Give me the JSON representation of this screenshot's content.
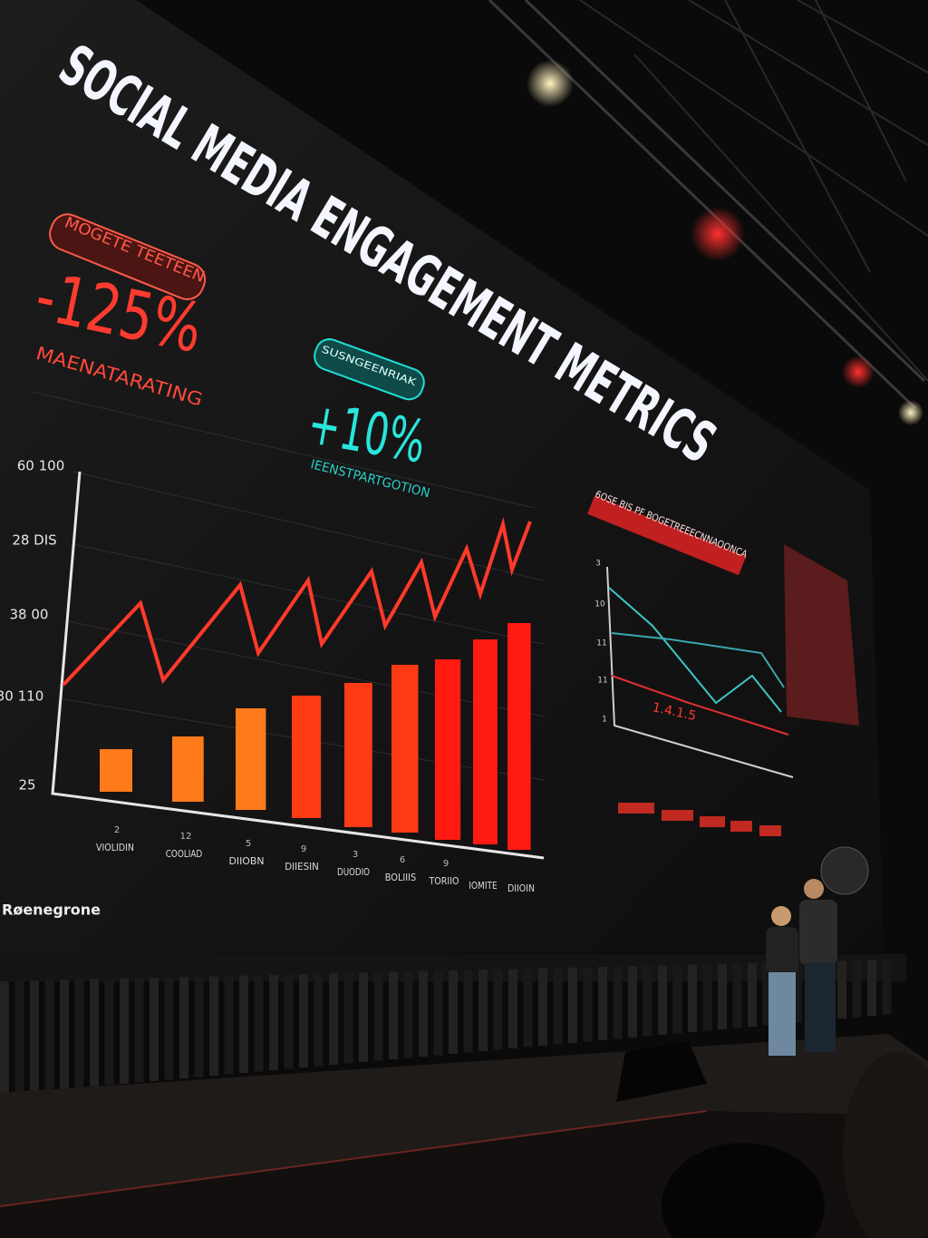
{
  "screen": {
    "title": "SOCIAL MEDIA ENGAGEMENT METRICS",
    "left_badge": "MOGETE TEETEEN",
    "left_stat": "-125%",
    "left_stat_label": "MAENATARATING",
    "center_badge": "SUSNGEENRIAK",
    "center_stat": "+10%",
    "center_stat_label": "IEENSTPARTGOTION",
    "y_labels": [
      "60 100",
      "28 DIS",
      "38 00",
      "30 110",
      "25"
    ],
    "x_numbers": [
      "2",
      "12",
      "5",
      "9",
      "3",
      "6",
      "9"
    ],
    "x_labels": [
      "VIOLIDIN",
      "COOLIAD",
      "DIIOBN",
      "DIIESIN",
      "DUODIO",
      "BOLIIIS",
      "TORIIO",
      "IOMITE",
      "DIIOIN"
    ],
    "right_panel_title": "6OSE BIS PF BOGETREEECNNAOONCA",
    "right_panel_value": "1.4.1.5",
    "right_y_labels": [
      "3",
      "10",
      "11",
      "11",
      "1"
    ],
    "brand": "Røenegrone"
  }
}
